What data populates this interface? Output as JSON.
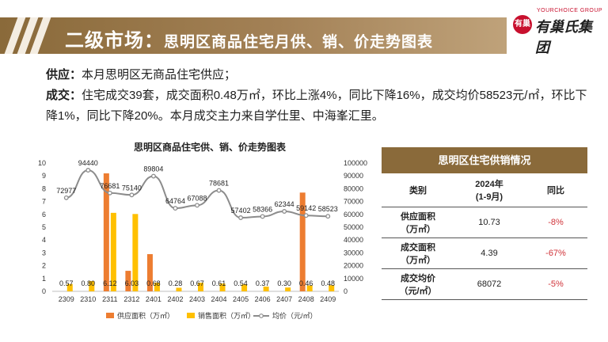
{
  "header": {
    "title_main": "二级市场：",
    "title_sub": "思明区商品住宅月供、销、价走势图表",
    "logo_en": "YOURCHOICE GROUP",
    "logo_cn": "有巢氏集团",
    "logo_mark": "有巢"
  },
  "summary": {
    "supply_label": "供应：",
    "supply_text": "本月思明区无商品住宅供应；",
    "deal_label": "成交：",
    "deal_text": "住宅成交39套，成交面积0.48万㎡，环比上涨4%，同比下降16%，成交均价58523元/㎡，环比下降1%，同比下降20%。本月成交主力来自学仕里、中海峯汇里。"
  },
  "table": {
    "title": "思明区住宅供销情况",
    "headers": [
      "类别",
      "2024年\n(1-9月)",
      "同比"
    ],
    "rows": [
      {
        "label": "供应面积\n（万㎡）",
        "value": "10.73",
        "yoy": "-8%"
      },
      {
        "label": "成交面积\n（万㎡）",
        "value": "4.39",
        "yoy": "-67%"
      },
      {
        "label": "成交均价\n（元/㎡）",
        "value": "68072",
        "yoy": "-5%"
      }
    ]
  },
  "chart_data": {
    "type": "bar",
    "title": "思明区商品住宅供、销、价走势图表",
    "categories": [
      "2309",
      "2310",
      "2311",
      "2312",
      "2401",
      "2402",
      "2403",
      "2404",
      "2405",
      "2406",
      "2407",
      "2408",
      "2409"
    ],
    "series": [
      {
        "name": "供应面积（万㎡）",
        "type": "bar",
        "axis": "left",
        "color": "#ed7d31",
        "values": [
          0,
          0,
          9.2,
          1.6,
          2.9,
          0,
          0,
          0,
          0,
          0,
          0,
          7.7,
          0
        ]
      },
      {
        "name": "销售面积（万㎡）",
        "type": "bar",
        "axis": "left",
        "color": "#ffc000",
        "values": [
          0.57,
          0.8,
          6.12,
          6.03,
          0.68,
          0.28,
          0.67,
          0.61,
          0.54,
          0.37,
          0.3,
          0.46,
          0.48
        ],
        "labels": [
          "0.57",
          "0.80",
          "6.12",
          "6.03",
          "0.68",
          "0.28",
          "0.67",
          "0.61",
          "0.54",
          "0.37",
          "0.30",
          "0.46",
          "0.48"
        ]
      },
      {
        "name": "均价（元/㎡）",
        "type": "line",
        "axis": "right",
        "color": "#a6a6a6",
        "values": [
          72977,
          94440,
          76681,
          75140,
          89804,
          64764,
          67088,
          78681,
          57402,
          58366,
          62344,
          59142,
          58523
        ],
        "labels": [
          "72977",
          "94440",
          "76681",
          "75140",
          "89804",
          "64764",
          "67088",
          "78681",
          "57402",
          "58366",
          "62344",
          "59142",
          "58523"
        ]
      }
    ],
    "y_left": {
      "min": 0,
      "max": 10,
      "ticks": [
        "0",
        "1",
        "2",
        "3",
        "4",
        "5",
        "6",
        "7",
        "8",
        "9",
        "10"
      ]
    },
    "y_right": {
      "min": 0,
      "max": 100000,
      "ticks": [
        "0",
        "10000",
        "20000",
        "30000",
        "40000",
        "50000",
        "60000",
        "70000",
        "80000",
        "90000",
        "100000"
      ]
    },
    "legend_position": "bottom",
    "grid": false
  }
}
